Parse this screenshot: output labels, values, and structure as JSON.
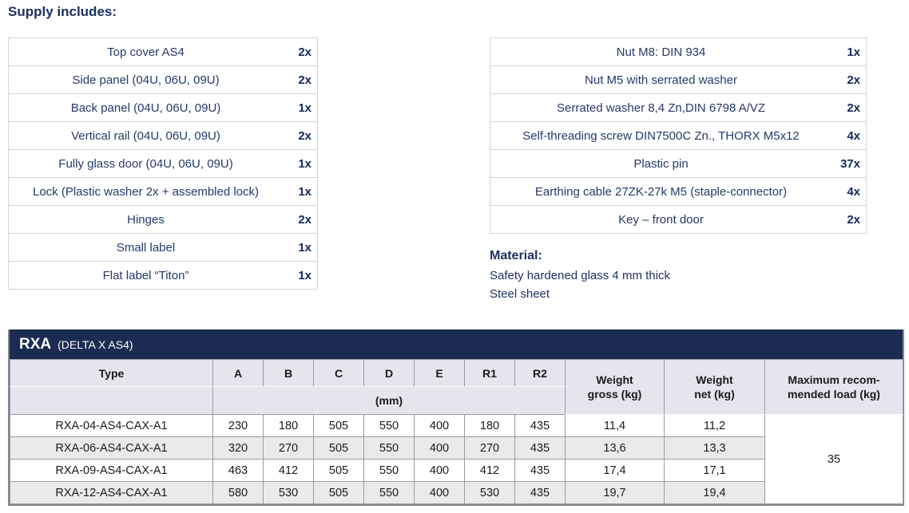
{
  "colors": {
    "navy_text": "#1e3366",
    "qty_text": "#142a5f",
    "titlebar_bg": "#1c2b52",
    "header_bg": "#e5e5ee",
    "row_alt_bg": "#eaeaea",
    "border_gray": "#9a9aa2"
  },
  "supply": {
    "heading": "Supply includes:",
    "left_items": [
      {
        "name": "Top cover AS4",
        "qty": "2x"
      },
      {
        "name": "Side panel (04U, 06U, 09U)",
        "qty": "2x"
      },
      {
        "name": "Back panel (04U, 06U, 09U)",
        "qty": "1x"
      },
      {
        "name": "Vertical rail (04U, 06U, 09U)",
        "qty": "2x"
      },
      {
        "name": "Fully glass door (04U, 06U, 09U)",
        "qty": "1x"
      },
      {
        "name": "Lock (Plastic washer 2x + assembled lock)",
        "qty": "1x"
      },
      {
        "name": "Hinges",
        "qty": "2x"
      },
      {
        "name": "Small label",
        "qty": "1x"
      },
      {
        "name": "Flat label “Titon”",
        "qty": "1x"
      }
    ],
    "right_items": [
      {
        "name": "Nut M8: DIN 934",
        "qty": "1x"
      },
      {
        "name": "Nut M5 with serrated washer",
        "qty": "2x"
      },
      {
        "name": "Serrated washer 8,4 Zn,DIN 6798 A/VZ",
        "qty": "2x"
      },
      {
        "name": "Self-threading screw DIN7500C Zn., THORX M5x12",
        "qty": "4x"
      },
      {
        "name": "Plastic pin",
        "qty": "37x"
      },
      {
        "name": "Earthing cable 27ZK-27k M5 (staple-connector)",
        "qty": "4x"
      },
      {
        "name": "Key – front door",
        "qty": "2x"
      }
    ]
  },
  "material": {
    "heading": "Material:",
    "line1": "Safety hardened glass 4 mm thick",
    "line2": "Steel sheet"
  },
  "spec_table": {
    "title": "RXA",
    "title_suffix": "(DELTA X AS4)",
    "col_type": "Type",
    "dim_cols": [
      "A",
      "B",
      "C",
      "D",
      "E",
      "R1",
      "R2"
    ],
    "unit_label": "(mm)",
    "weight_gross_header": "Weight\ngross (kg)",
    "weight_net_header": "Weight\nnet (kg)",
    "max_load_header": "Maximum recom-\nmended load (kg)",
    "rows": [
      {
        "type": "RXA-04-AS4-CAX-A1",
        "a": "230",
        "b": "180",
        "c": "505",
        "d": "550",
        "e": "400",
        "r1": "180",
        "r2": "435",
        "gross": "11,4",
        "net": "11,2"
      },
      {
        "type": "RXA-06-AS4-CAX-A1",
        "a": "320",
        "b": "270",
        "c": "505",
        "d": "550",
        "e": "400",
        "r1": "270",
        "r2": "435",
        "gross": "13,6",
        "net": "13,3"
      },
      {
        "type": "RXA-09-AS4-CAX-A1",
        "a": "463",
        "b": "412",
        "c": "505",
        "d": "550",
        "e": "400",
        "r1": "412",
        "r2": "435",
        "gross": "17,4",
        "net": "17,1"
      },
      {
        "type": "RXA-12-AS4-CAX-A1",
        "a": "580",
        "b": "530",
        "c": "505",
        "d": "550",
        "e": "400",
        "r1": "530",
        "r2": "435",
        "gross": "19,7",
        "net": "19,4"
      }
    ],
    "max_load": "35"
  }
}
